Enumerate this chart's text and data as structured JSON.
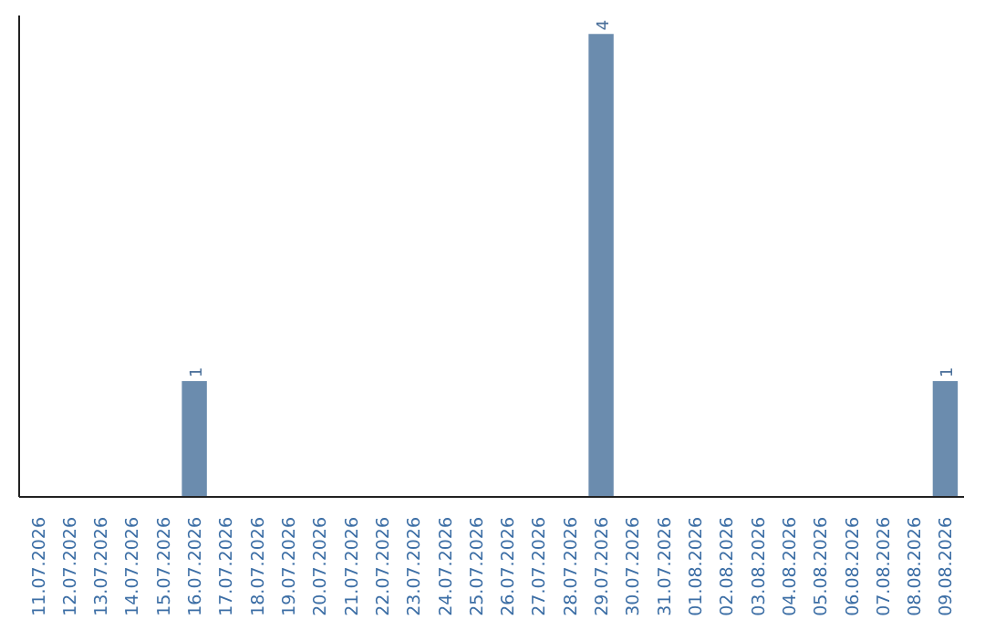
{
  "chart_data": {
    "type": "bar",
    "categories": [
      "11.07.2026",
      "12.07.2026",
      "13.07.2026",
      "14.07.2026",
      "15.07.2026",
      "16.07.2026",
      "17.07.2026",
      "18.07.2026",
      "19.07.2026",
      "20.07.2026",
      "21.07.2026",
      "22.07.2026",
      "23.07.2026",
      "24.07.2026",
      "25.07.2026",
      "26.07.2026",
      "27.07.2026",
      "28.07.2026",
      "29.07.2026",
      "30.07.2026",
      "31.07.2026",
      "01.08.2026",
      "02.08.2026",
      "03.08.2026",
      "04.08.2026",
      "05.08.2026",
      "06.08.2026",
      "07.08.2026",
      "08.08.2026",
      "09.08.2026"
    ],
    "values": [
      0,
      0,
      0,
      0,
      0,
      1,
      0,
      0,
      0,
      0,
      0,
      0,
      0,
      0,
      0,
      0,
      0,
      0,
      4,
      0,
      0,
      0,
      0,
      0,
      0,
      0,
      0,
      0,
      0,
      1
    ],
    "value_labels": [
      null,
      null,
      null,
      null,
      null,
      "1",
      null,
      null,
      null,
      null,
      null,
      null,
      null,
      null,
      null,
      null,
      null,
      null,
      "4",
      null,
      null,
      null,
      null,
      null,
      null,
      null,
      null,
      null,
      null,
      "1"
    ],
    "color": "#6b8cae",
    "grid": false,
    "tick_labels": "x"
  }
}
